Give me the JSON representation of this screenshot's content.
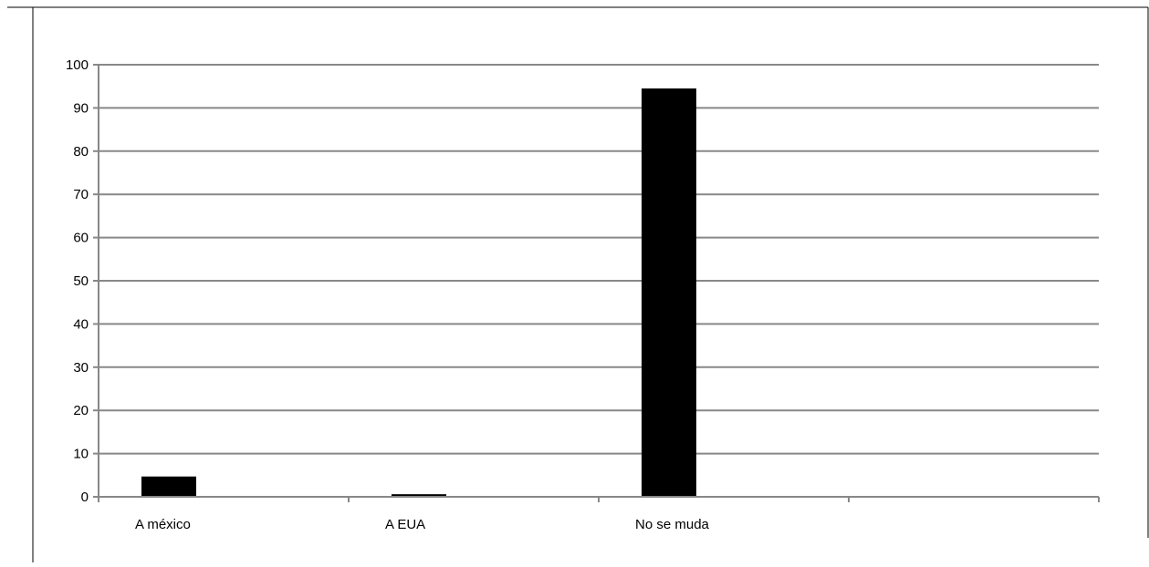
{
  "chart_data": {
    "type": "bar",
    "categories": [
      "A méxico",
      "A EUA",
      "No se muda",
      ""
    ],
    "values": [
      4.7,
      0.6,
      94.5,
      null
    ],
    "title": "",
    "xlabel": "",
    "ylabel": "",
    "ylim": [
      0,
      100
    ],
    "yticks": [
      0,
      10,
      20,
      30,
      40,
      50,
      60,
      70,
      80,
      90,
      100
    ],
    "grid": true,
    "legend": "none",
    "colors": {
      "bar": "#000000",
      "grid": "#888888",
      "axis": "#888888",
      "frame": "#000000"
    }
  }
}
